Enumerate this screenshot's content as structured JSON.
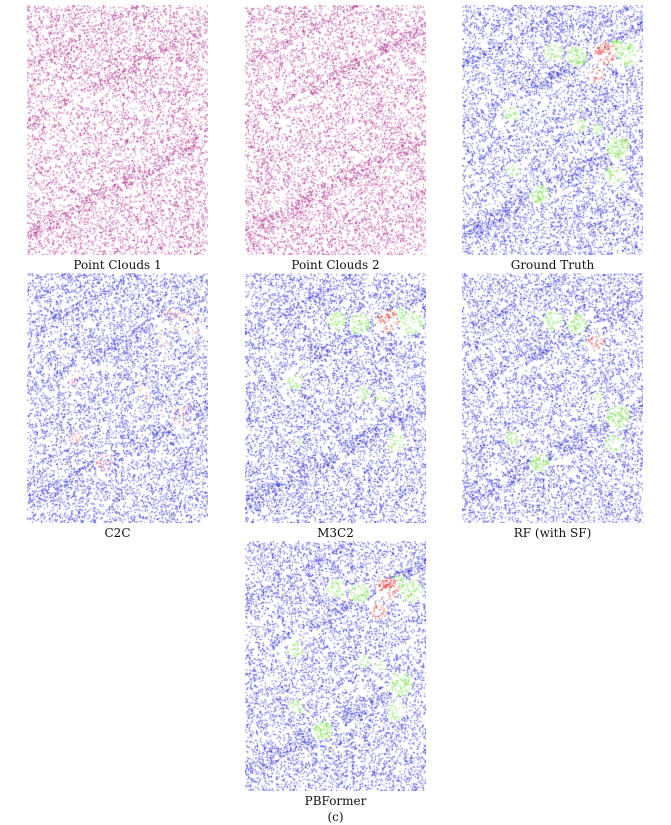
{
  "figure": {
    "label": "(c)",
    "panels": [
      {
        "caption": "Point Clouds 1",
        "style": "magenta",
        "variant": 0
      },
      {
        "caption": "Point Clouds 2",
        "style": "magenta",
        "variant": 1
      },
      {
        "caption": "Ground Truth",
        "style": "change",
        "variant": 2
      },
      {
        "caption": "C2C",
        "style": "change",
        "variant": 3
      },
      {
        "caption": "M3C2",
        "style": "change",
        "variant": 4
      },
      {
        "caption": "RF (with SF)",
        "style": "change",
        "variant": 5
      },
      {
        "caption": "PBFormer",
        "style": "change",
        "variant": 6
      }
    ]
  },
  "colors": {
    "point_cloud": "#b0308f",
    "unchanged": "#2a2ad6",
    "added": "#66dd33",
    "removed": "#e03030",
    "background": "#ffffff"
  }
}
